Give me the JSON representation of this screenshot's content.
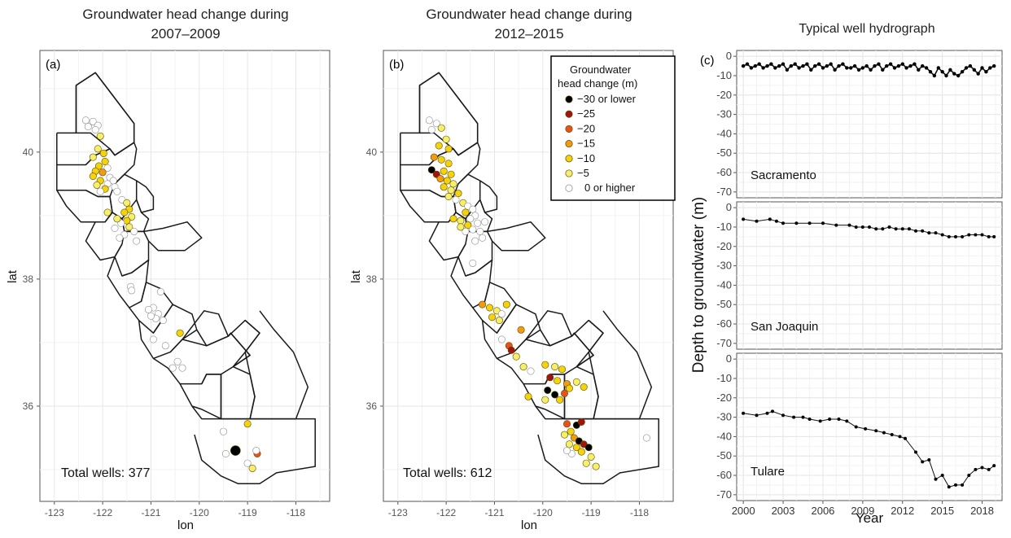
{
  "chart_data": [
    {
      "type": "scatter",
      "id": "a",
      "panel_label": "(a)",
      "title_line1": "Groundwater head change during",
      "title_line2": "2007–2009",
      "xlabel": "lon",
      "ylabel": "lat",
      "xlim": [
        -123.3,
        -117.3
      ],
      "ylim": [
        34.5,
        41.6
      ],
      "x_ticks": [
        "-123",
        "-122",
        "-121",
        "-120",
        "-119",
        "-118"
      ],
      "y_ticks": [
        "36",
        "38",
        "40"
      ],
      "total_wells_label": "Total wells: 377",
      "points": [
        [
          -122.35,
          40.5,
          0
        ],
        [
          -122.2,
          40.48,
          0
        ],
        [
          -122.1,
          40.42,
          0
        ],
        [
          -122.3,
          40.4,
          0
        ],
        [
          -122.15,
          40.35,
          0
        ],
        [
          -122.05,
          40.25,
          -5
        ],
        [
          -122.1,
          40.05,
          -5
        ],
        [
          -121.98,
          39.98,
          -10
        ],
        [
          -122.2,
          39.92,
          -5
        ],
        [
          -121.95,
          39.85,
          -10
        ],
        [
          -122.08,
          39.78,
          -10
        ],
        [
          -121.9,
          39.75,
          0
        ],
        [
          -122.15,
          39.7,
          -10
        ],
        [
          -122.0,
          39.68,
          -15
        ],
        [
          -122.2,
          39.62,
          -10
        ],
        [
          -121.85,
          39.6,
          0
        ],
        [
          -122.05,
          39.55,
          -10
        ],
        [
          -121.78,
          39.55,
          0
        ],
        [
          -121.9,
          39.5,
          0
        ],
        [
          -122.12,
          39.48,
          -5
        ],
        [
          -121.75,
          39.45,
          0
        ],
        [
          -121.95,
          39.42,
          -10
        ],
        [
          -122.05,
          39.38,
          0
        ],
        [
          -121.7,
          39.38,
          0
        ],
        [
          -121.6,
          39.25,
          0
        ],
        [
          -121.5,
          39.2,
          -5
        ],
        [
          -121.45,
          39.1,
          -10
        ],
        [
          -121.55,
          39.05,
          -10
        ],
        [
          -121.4,
          38.98,
          -5
        ],
        [
          -121.5,
          38.92,
          -10
        ],
        [
          -121.62,
          38.88,
          0
        ],
        [
          -121.45,
          38.82,
          -5
        ],
        [
          -121.35,
          38.75,
          0
        ],
        [
          -121.55,
          38.7,
          0
        ],
        [
          -121.65,
          38.65,
          0
        ],
        [
          -121.3,
          38.6,
          0
        ],
        [
          -121.9,
          39.05,
          -5
        ],
        [
          -121.7,
          38.95,
          -5
        ],
        [
          -121.75,
          38.8,
          0
        ],
        [
          -121.42,
          37.88,
          0
        ],
        [
          -121.4,
          37.82,
          0
        ],
        [
          -120.95,
          37.55,
          0
        ],
        [
          -121.05,
          37.52,
          0
        ],
        [
          -120.85,
          37.45,
          0
        ],
        [
          -120.9,
          37.38,
          0
        ],
        [
          -120.75,
          37.35,
          0
        ],
        [
          -121.0,
          37.42,
          0
        ],
        [
          -120.8,
          37.8,
          0
        ],
        [
          -120.4,
          37.15,
          -10
        ],
        [
          -120.95,
          37.05,
          0
        ],
        [
          -120.7,
          36.95,
          0
        ],
        [
          -120.45,
          36.7,
          0
        ],
        [
          -120.35,
          36.6,
          0
        ],
        [
          -120.55,
          36.6,
          0
        ],
        [
          -119.25,
          35.3,
          -30
        ],
        [
          -119.0,
          35.72,
          -10
        ],
        [
          -118.8,
          35.25,
          -20
        ],
        [
          -119.5,
          35.6,
          0
        ],
        [
          -119.45,
          35.25,
          0
        ],
        [
          -119.0,
          35.1,
          0
        ],
        [
          -118.9,
          35.02,
          -5
        ],
        [
          -118.82,
          35.3,
          0
        ]
      ]
    },
    {
      "type": "scatter",
      "id": "b",
      "panel_label": "(b)",
      "title_line1": "Groundwater head change during",
      "title_line2": "2012–2015",
      "xlabel": "lon",
      "ylabel": "lat",
      "xlim": [
        -123.3,
        -117.3
      ],
      "ylim": [
        34.5,
        41.6
      ],
      "x_ticks": [
        "-123",
        "-122",
        "-121",
        "-120",
        "-119",
        "-118"
      ],
      "y_ticks": [
        "36",
        "38",
        "40"
      ],
      "total_wells_label": "Total wells: 612",
      "legend": {
        "title_line1": "Groundwater",
        "title_line2": "head change (m)",
        "items": [
          "−30 or lower",
          "−25",
          "−20",
          "−15",
          "−10",
          "−5",
          "0 or higher"
        ],
        "colors": [
          "#000000",
          "#a0150f",
          "#e8521a",
          "#f29a12",
          "#f4d20c",
          "#f5ef6a",
          "#ffffff"
        ]
      },
      "points": [
        [
          -122.35,
          40.5,
          0
        ],
        [
          -122.2,
          40.45,
          0
        ],
        [
          -122.1,
          40.38,
          -5
        ],
        [
          -122.3,
          40.35,
          0
        ],
        [
          -122.0,
          40.2,
          -5
        ],
        [
          -122.15,
          40.1,
          -10
        ],
        [
          -121.95,
          40.05,
          -10
        ],
        [
          -122.25,
          39.92,
          -15
        ],
        [
          -122.1,
          39.88,
          -10
        ],
        [
          -121.95,
          39.82,
          -10
        ],
        [
          -122.3,
          39.72,
          -30
        ],
        [
          -122.2,
          39.65,
          -25
        ],
        [
          -122.05,
          39.7,
          -10
        ],
        [
          -121.9,
          39.65,
          -10
        ],
        [
          -122.12,
          39.58,
          -15
        ],
        [
          -121.98,
          39.55,
          -10
        ],
        [
          -121.85,
          39.5,
          -5
        ],
        [
          -122.05,
          39.45,
          -10
        ],
        [
          -121.9,
          39.4,
          -5
        ],
        [
          -121.75,
          39.35,
          -10
        ],
        [
          -121.95,
          39.3,
          -5
        ],
        [
          -121.8,
          39.25,
          0
        ],
        [
          -121.65,
          39.2,
          -5
        ],
        [
          -121.55,
          39.15,
          0
        ],
        [
          -121.45,
          39.1,
          0
        ],
        [
          -121.6,
          39.05,
          -10
        ],
        [
          -121.4,
          39.0,
          0
        ],
        [
          -121.5,
          38.95,
          0
        ],
        [
          -121.7,
          38.92,
          -5
        ],
        [
          -121.35,
          38.88,
          0
        ],
        [
          -121.55,
          38.85,
          -10
        ],
        [
          -121.45,
          38.78,
          0
        ],
        [
          -121.3,
          38.75,
          0
        ],
        [
          -121.6,
          38.75,
          0
        ],
        [
          -121.25,
          38.65,
          0
        ],
        [
          -121.4,
          38.6,
          0
        ],
        [
          -121.85,
          38.95,
          -10
        ],
        [
          -121.7,
          38.82,
          -5
        ],
        [
          -121.2,
          38.9,
          0
        ],
        [
          -121.45,
          38.25,
          0
        ],
        [
          -121.25,
          37.6,
          -15
        ],
        [
          -121.1,
          37.55,
          -10
        ],
        [
          -120.95,
          37.5,
          -5
        ],
        [
          -120.85,
          37.45,
          0
        ],
        [
          -121.05,
          37.4,
          -10
        ],
        [
          -120.9,
          37.35,
          -5
        ],
        [
          -120.75,
          37.6,
          -10
        ],
        [
          -120.45,
          37.2,
          -15
        ],
        [
          -120.85,
          37.05,
          0
        ],
        [
          -120.7,
          36.95,
          -20
        ],
        [
          -120.65,
          36.88,
          -25
        ],
        [
          -120.55,
          36.78,
          -5
        ],
        [
          -120.4,
          36.62,
          -5
        ],
        [
          -120.25,
          36.55,
          0
        ],
        [
          -119.95,
          36.65,
          -10
        ],
        [
          -119.75,
          36.62,
          -5
        ],
        [
          -119.6,
          36.58,
          -10
        ],
        [
          -119.85,
          36.45,
          -25
        ],
        [
          -119.7,
          36.4,
          -10
        ],
        [
          -119.5,
          36.35,
          -15
        ],
        [
          -119.3,
          36.38,
          -5
        ],
        [
          -119.15,
          36.3,
          -10
        ],
        [
          -119.9,
          36.25,
          -30
        ],
        [
          -119.75,
          36.18,
          -30
        ],
        [
          -119.65,
          36.1,
          -10
        ],
        [
          -119.55,
          36.2,
          -20
        ],
        [
          -119.45,
          36.28,
          -10
        ],
        [
          -119.95,
          36.1,
          -5
        ],
        [
          -120.3,
          36.15,
          -10
        ],
        [
          -119.5,
          35.72,
          -20
        ],
        [
          -119.3,
          35.7,
          -30
        ],
        [
          -119.2,
          35.75,
          -25
        ],
        [
          -119.42,
          35.6,
          -10
        ],
        [
          -119.55,
          35.55,
          -5
        ],
        [
          -119.35,
          35.5,
          -15
        ],
        [
          -119.25,
          35.45,
          -30
        ],
        [
          -119.15,
          35.4,
          -25
        ],
        [
          -119.05,
          35.35,
          -30
        ],
        [
          -119.3,
          35.35,
          -10
        ],
        [
          -119.45,
          35.4,
          -5
        ],
        [
          -119.2,
          35.28,
          -10
        ],
        [
          -119.4,
          35.25,
          0
        ],
        [
          -119.0,
          35.2,
          -5
        ],
        [
          -118.9,
          35.05,
          -5
        ],
        [
          -119.1,
          35.1,
          -5
        ],
        [
          -117.85,
          35.5,
          0
        ],
        [
          -119.5,
          35.3,
          0
        ]
      ]
    },
    {
      "type": "line",
      "id": "c",
      "panel_label": "(c)",
      "title": "Typical well hydrograph",
      "xlabel": "Year",
      "ylabel": "Depth to groundwater (m)",
      "xlim": [
        1999.5,
        2019.5
      ],
      "ylim": [
        -73,
        3
      ],
      "x_ticks": [
        2000,
        2003,
        2006,
        2009,
        2012,
        2015,
        2018
      ],
      "y_ticks": [
        0,
        -10,
        -20,
        -30,
        -40,
        -50,
        -60,
        -70
      ],
      "series": [
        {
          "name": "Sacramento",
          "x": [
            2000.0,
            2000.3,
            2000.6,
            2000.9,
            2001.2,
            2001.5,
            2001.8,
            2002.1,
            2002.4,
            2002.7,
            2003.0,
            2003.3,
            2003.6,
            2003.9,
            2004.2,
            2004.5,
            2004.8,
            2005.1,
            2005.4,
            2005.7,
            2006.0,
            2006.3,
            2006.6,
            2006.9,
            2007.2,
            2007.5,
            2007.8,
            2008.1,
            2008.4,
            2008.7,
            2009.0,
            2009.3,
            2009.6,
            2009.9,
            2010.2,
            2010.5,
            2010.8,
            2011.1,
            2011.4,
            2011.7,
            2012.0,
            2012.3,
            2012.6,
            2012.9,
            2013.2,
            2013.5,
            2013.8,
            2014.1,
            2014.4,
            2014.7,
            2015.0,
            2015.3,
            2015.6,
            2015.9,
            2016.2,
            2016.5,
            2016.8,
            2017.1,
            2017.4,
            2017.7,
            2018.0,
            2018.3,
            2018.6,
            2018.9
          ],
          "y": [
            -5,
            -4,
            -6,
            -5,
            -4,
            -6,
            -5,
            -4,
            -6,
            -5,
            -4,
            -7,
            -5,
            -4,
            -6,
            -5,
            -4,
            -7,
            -5,
            -4,
            -6,
            -5,
            -4,
            -7,
            -5,
            -4,
            -6,
            -6,
            -5,
            -7,
            -6,
            -5,
            -7,
            -5,
            -4,
            -7,
            -5,
            -4,
            -6,
            -5,
            -4,
            -6,
            -5,
            -4,
            -7,
            -5,
            -6,
            -8,
            -10,
            -6,
            -8,
            -10,
            -7,
            -9,
            -10,
            -8,
            -6,
            -5,
            -7,
            -9,
            -6,
            -8,
            -6,
            -5
          ]
        },
        {
          "name": "San Joaquin",
          "x": [
            2000.0,
            2001.0,
            2002.0,
            2002.5,
            2003.0,
            2004.0,
            2005.0,
            2006.0,
            2007.0,
            2008.0,
            2008.5,
            2009.0,
            2009.5,
            2010.0,
            2010.5,
            2011.0,
            2011.5,
            2012.0,
            2012.5,
            2013.0,
            2013.5,
            2014.0,
            2014.5,
            2015.0,
            2015.5,
            2016.0,
            2016.5,
            2017.0,
            2017.5,
            2018.0,
            2018.5,
            2018.9
          ],
          "y": [
            -6,
            -7,
            -6,
            -7,
            -8,
            -8,
            -8,
            -8,
            -9,
            -9,
            -10,
            -10,
            -10,
            -11,
            -11,
            -10,
            -11,
            -11,
            -11,
            -12,
            -12,
            -13,
            -13,
            -14,
            -15,
            -15,
            -15,
            -14,
            -14,
            -14,
            -15,
            -15
          ]
        },
        {
          "name": "Tulare",
          "x": [
            2000.0,
            2001.0,
            2001.8,
            2002.2,
            2003.0,
            2003.8,
            2004.5,
            2005.0,
            2005.8,
            2006.5,
            2007.2,
            2007.8,
            2008.5,
            2009.2,
            2010.0,
            2010.6,
            2011.2,
            2011.8,
            2012.2,
            2013.0,
            2013.5,
            2014.0,
            2014.5,
            2015.0,
            2015.5,
            2016.0,
            2016.5,
            2017.0,
            2017.5,
            2018.0,
            2018.5,
            2018.9
          ],
          "y": [
            -28,
            -29,
            -28,
            -27,
            -29,
            -30,
            -30,
            -31,
            -32,
            -31,
            -31,
            -32,
            -35,
            -36,
            -37,
            -38,
            -39,
            -40,
            -41,
            -48,
            -53,
            -52,
            -62,
            -60,
            -66,
            -65,
            -65,
            -60,
            -57,
            -56,
            -57,
            -55
          ]
        }
      ]
    }
  ]
}
